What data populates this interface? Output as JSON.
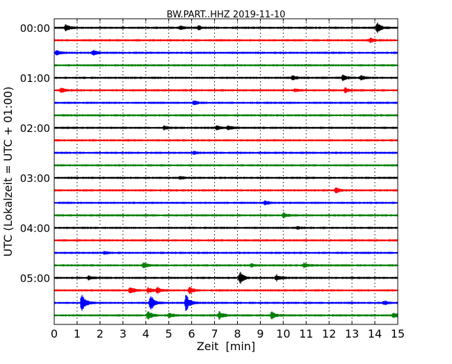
{
  "chart_data": {
    "type": "line",
    "title": "BW.PART..HHZ 2019-11-10",
    "xlabel": "Zeit  [min]",
    "ylabel": "UTC (Lokalzeit = UTC + 01:00)",
    "xlim": [
      0,
      15
    ],
    "x_ticks": [
      "0",
      "1",
      "2",
      "3",
      "4",
      "5",
      "6",
      "7",
      "8",
      "9",
      "10",
      "11",
      "12",
      "13",
      "14",
      "15"
    ],
    "y_ticks": [
      "00:00",
      "01:00",
      "02:00",
      "03:00",
      "04:00",
      "05:00"
    ],
    "grid": "vertical dotted",
    "colors": [
      "#000000",
      "#ff0000",
      "#0000ff",
      "#008000"
    ],
    "traces": [
      {
        "start": "00:00",
        "events": [
          [
            0.5,
            0.5
          ],
          [
            5.5,
            0.3
          ],
          [
            6.3,
            0.3
          ],
          [
            14.1,
            0.8
          ]
        ]
      },
      {
        "start": "00:15",
        "events": [
          [
            13.8,
            0.4
          ]
        ]
      },
      {
        "start": "00:30",
        "events": [
          [
            0.1,
            0.3
          ],
          [
            1.7,
            0.4
          ]
        ]
      },
      {
        "start": "00:45",
        "events": []
      },
      {
        "start": "01:00",
        "events": [
          [
            10.4,
            0.3
          ],
          [
            12.6,
            0.4
          ],
          [
            13.4,
            0.3
          ]
        ]
      },
      {
        "start": "01:15",
        "events": [
          [
            0.3,
            0.4
          ],
          [
            10.5,
            0.2
          ],
          [
            12.7,
            0.4
          ]
        ]
      },
      {
        "start": "01:30",
        "events": [
          [
            6.1,
            0.3
          ]
        ]
      },
      {
        "start": "01:45",
        "events": []
      },
      {
        "start": "02:00",
        "events": [
          [
            4.8,
            0.3
          ],
          [
            7.1,
            0.3
          ],
          [
            7.6,
            0.3
          ]
        ]
      },
      {
        "start": "02:15",
        "events": []
      },
      {
        "start": "02:30",
        "events": [
          [
            6.1,
            0.2
          ]
        ]
      },
      {
        "start": "02:45",
        "events": []
      },
      {
        "start": "03:00",
        "events": [
          [
            5.5,
            0.2
          ]
        ]
      },
      {
        "start": "03:15",
        "events": [
          [
            12.3,
            0.4
          ]
        ]
      },
      {
        "start": "03:30",
        "events": [
          [
            9.2,
            0.3
          ]
        ]
      },
      {
        "start": "03:45",
        "events": [
          [
            10.0,
            0.4
          ]
        ]
      },
      {
        "start": "04:00",
        "events": [
          [
            10.6,
            0.2
          ]
        ]
      },
      {
        "start": "04:15",
        "events": []
      },
      {
        "start": "04:30",
        "events": [
          [
            2.2,
            0.2
          ]
        ]
      },
      {
        "start": "04:45",
        "events": [
          [
            3.9,
            0.4
          ],
          [
            8.6,
            0.2
          ],
          [
            10.9,
            0.4
          ]
        ]
      },
      {
        "start": "05:00",
        "events": [
          [
            1.5,
            0.3
          ],
          [
            8.1,
            1.0
          ],
          [
            9.7,
            0.5
          ]
        ]
      },
      {
        "start": "05:15",
        "events": [
          [
            3.3,
            0.6
          ],
          [
            4.1,
            0.4
          ],
          [
            4.5,
            0.5
          ],
          [
            5.9,
            0.5
          ]
        ]
      },
      {
        "start": "05:30",
        "events": [
          [
            1.2,
            1.4
          ],
          [
            4.2,
            1.3
          ],
          [
            5.75,
            1.4
          ],
          [
            14.4,
            0.3
          ]
        ]
      },
      {
        "start": "05:45",
        "events": [
          [
            4.1,
            0.6
          ],
          [
            5.0,
            0.4
          ],
          [
            7.2,
            0.6
          ],
          [
            9.5,
            0.6
          ],
          [
            14.8,
            0.4
          ]
        ]
      }
    ]
  }
}
